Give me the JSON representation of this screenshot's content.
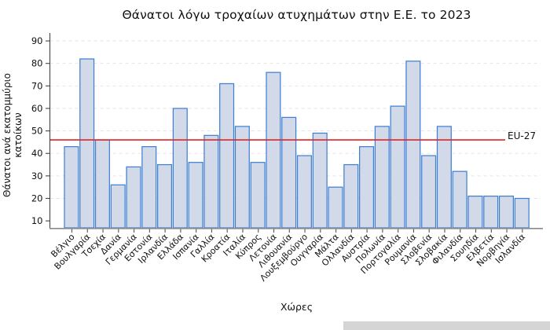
{
  "title": "Θάνατοι λόγω τροχαίων ατυχημάτων στην Ε.Ε. το 2023",
  "chart_data": {
    "type": "bar",
    "title": "Θάνατοι λόγω τροχαίων ατυχημάτων στην Ε.Ε. το 2023",
    "xlabel": "Χώρες",
    "ylabel": "Θάνατοι ανά εκατομμύριο κατοίκων",
    "categories": [
      "Βέλγιο",
      "Βουλγαρία",
      "Τσεχία",
      "Δανία",
      "Γερμανία",
      "Εστονία",
      "Ιρλανδία",
      "Ελλάδα",
      "Ισπανία",
      "Γαλλία",
      "Κροατία",
      "Ιταλία",
      "Κύπρος",
      "Λετονία",
      "Λιθουανία",
      "Λουξεμβούργο",
      "Ουγγαρία",
      "Μάλτα",
      "Ολλανδία",
      "Αυστρία",
      "Πολωνία",
      "Πορτογαλία",
      "Ρουμανία",
      "Σλοβενία",
      "Σλοβακία",
      "Φιλανδία",
      "Σουηδία",
      "Ελβετία",
      "Νορβηγία",
      "Ισλανδία"
    ],
    "values": [
      43,
      82,
      46,
      26,
      34,
      43,
      35,
      60,
      36,
      48,
      71,
      52,
      36,
      76,
      56,
      39,
      49,
      25,
      35,
      43,
      52,
      61,
      81,
      39,
      52,
      32,
      21,
      21,
      21,
      20
    ],
    "reference_line": {
      "label": "EU-27",
      "value": 46
    },
    "ylim": [
      6.9,
      93
    ],
    "yticks": [
      10,
      20,
      30,
      40,
      50,
      60,
      70,
      80,
      90
    ],
    "grid": "horizontal-dashed",
    "legend": "none",
    "colors": {
      "bar_fill": "#d2dae9",
      "bar_stroke": "#4080d4",
      "reference_line": "#e02424",
      "gridline": "#e3e3e3",
      "axis": "#8a8a8a",
      "text": "#111111"
    }
  }
}
